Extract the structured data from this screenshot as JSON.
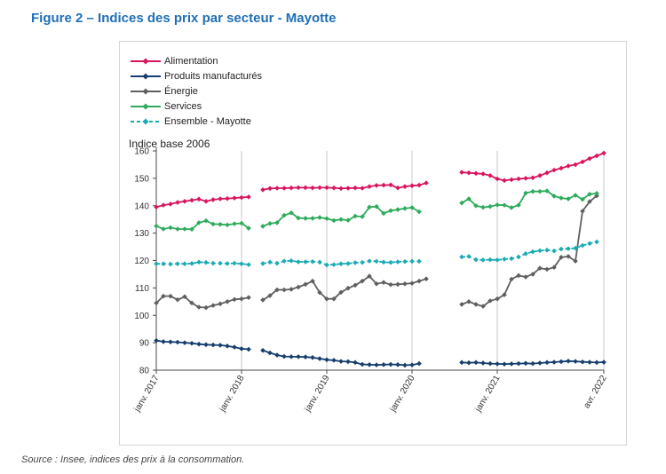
{
  "figure_title": "Figure 2 – Indices des prix par secteur - Mayotte",
  "source": "Source : Insee, indices des prix à la consommation.",
  "chart_data": {
    "type": "line",
    "title": "",
    "ylabel": "Indice base 2006",
    "ylim": [
      80,
      160
    ],
    "yticks": [
      80,
      90,
      100,
      110,
      120,
      130,
      140,
      150,
      160
    ],
    "xticks": [
      {
        "label": "janv. 2017",
        "index": 0
      },
      {
        "label": "janv. 2018",
        "index": 12
      },
      {
        "label": "janv. 2019",
        "index": 24
      },
      {
        "label": "janv. 2020",
        "index": 36
      },
      {
        "label": "janv. 2021",
        "index": 48
      },
      {
        "label": "avr. 2022",
        "index": 63
      }
    ],
    "x_start": "janv. 2017",
    "frequency": "monthly",
    "grid": "vertical",
    "legend_position": "top-left",
    "series": [
      {
        "name": "Alimentation",
        "color": "#d9155e",
        "dashed": false,
        "values": [
          139.5,
          140.2,
          140.6,
          141.2,
          141.6,
          142,
          142.4,
          141.6,
          142.2,
          142.5,
          142.6,
          142.8,
          143,
          143.2,
          null,
          145.8,
          146.3,
          146.4,
          146.4,
          146.5,
          146.6,
          146.6,
          146.5,
          146.6,
          146.6,
          146.5,
          146.3,
          146.4,
          146.5,
          146.4,
          147,
          147.4,
          147.5,
          147.6,
          146.5,
          147,
          147.3,
          147.5,
          148.3,
          null,
          null,
          null,
          null,
          152.2,
          152,
          151.8,
          151.6,
          151,
          149.8,
          149.2,
          149.5,
          149.8,
          150,
          150.2,
          151,
          152,
          153,
          153.7,
          154.5,
          155,
          156,
          157.2,
          158.2,
          159.2
        ]
      },
      {
        "name": "Produits manufacturés",
        "color": "#163e6f",
        "dashed": false,
        "values": [
          90.8,
          90.4,
          90.3,
          90.2,
          90,
          89.8,
          89.5,
          89.3,
          89.2,
          89.1,
          88.8,
          88.4,
          87.8,
          87.6,
          null,
          87.2,
          86.3,
          85.5,
          85,
          84.9,
          84.9,
          84.8,
          84.6,
          84.2,
          83.8,
          83.6,
          83.2,
          83.1,
          82.8,
          82.1,
          82,
          81.9,
          82,
          82.1,
          82,
          81.8,
          81.9,
          82.4,
          null,
          null,
          null,
          null,
          null,
          82.8,
          82.7,
          82.8,
          82.6,
          82.4,
          82.3,
          82.2,
          82.3,
          82.4,
          82.5,
          82.4,
          82.6,
          82.8,
          82.9,
          83.1,
          83.3,
          83.2,
          83,
          82.9,
          82.8,
          82.9
        ]
      },
      {
        "name": "Énergie",
        "color": "#5f5f5f",
        "dashed": false,
        "values": [
          104.5,
          107,
          107,
          105.7,
          106.8,
          104.5,
          103,
          102.8,
          103.6,
          104.2,
          105,
          105.8,
          106,
          106.5,
          null,
          105.6,
          107.2,
          109.3,
          109.3,
          109.5,
          110.3,
          111.3,
          112.5,
          108.3,
          106,
          106,
          108.4,
          109.9,
          111,
          112.5,
          114.3,
          111.5,
          112,
          111.2,
          111.3,
          111.5,
          111.7,
          112.5,
          113.3,
          null,
          null,
          null,
          null,
          104,
          105,
          104,
          103.3,
          105.3,
          106,
          107.5,
          113.2,
          114.5,
          114,
          115,
          117.2,
          116.8,
          117.5,
          121.2,
          121.5,
          119.8,
          138,
          141.5,
          143.6
        ]
      },
      {
        "name": "Services",
        "color": "#2eab5c",
        "dashed": false,
        "values": [
          132.6,
          131.5,
          132,
          131.5,
          131.5,
          131.4,
          133.8,
          134.5,
          133.3,
          133.2,
          133,
          133.4,
          133.6,
          131.8,
          null,
          132.5,
          133.5,
          133.8,
          136.5,
          137.4,
          135.5,
          135.4,
          135.4,
          135.7,
          135.3,
          134.6,
          135,
          134.7,
          136.2,
          136,
          139.5,
          139.7,
          137.2,
          138.2,
          138.6,
          139,
          139.3,
          137.8,
          null,
          null,
          null,
          null,
          null,
          141,
          142.5,
          140,
          139.4,
          139.7,
          140.3,
          140.2,
          139.3,
          140.2,
          144.6,
          145.2,
          145.2,
          145.4,
          143.5,
          142.8,
          142.5,
          143.8,
          142.3,
          144.2,
          144.5
        ]
      },
      {
        "name": "Ensemble - Mayotte",
        "color": "#1aabb5",
        "dashed": true,
        "values": [
          118.8,
          118.8,
          118.7,
          118.8,
          118.8,
          118.9,
          119.4,
          119.3,
          119,
          119,
          118.9,
          119,
          118.8,
          118.5,
          null,
          118.9,
          119.4,
          119,
          119.8,
          119.9,
          119.5,
          119.5,
          119.6,
          119.4,
          118.4,
          118.5,
          118.8,
          118.9,
          119.2,
          119.3,
          119.8,
          119.7,
          119.4,
          119.3,
          119.5,
          119.6,
          119.7,
          119.7,
          null,
          null,
          null,
          null,
          null,
          121.3,
          121.5,
          120.3,
          120.2,
          120.3,
          120.2,
          120.5,
          120.7,
          121.3,
          122.5,
          123.2,
          123.6,
          123.8,
          123.5,
          124.2,
          124.3,
          124.5,
          125.5,
          126.2,
          126.8
        ]
      }
    ]
  }
}
